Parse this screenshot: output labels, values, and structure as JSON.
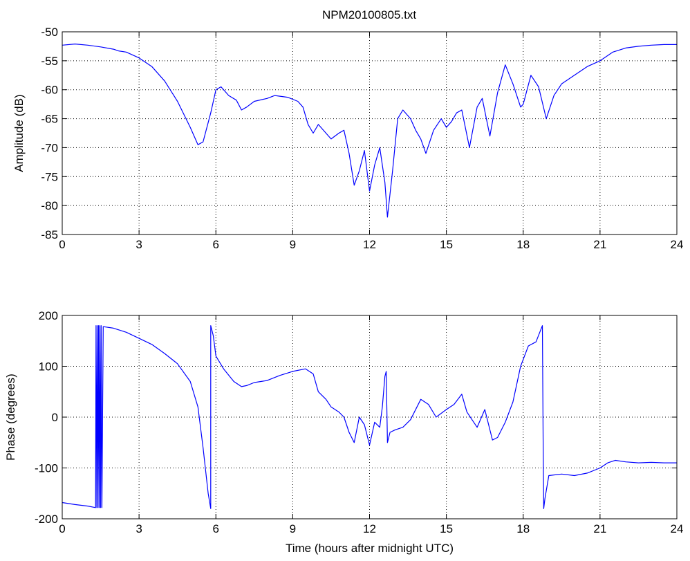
{
  "figure": {
    "title": "NPM20100805.txt",
    "line_color": "#0000ff"
  },
  "chart_data": [
    {
      "type": "line",
      "title": "NPM20100805.txt",
      "xlabel": "",
      "ylabel": "Amplitude (dB)",
      "xlim": [
        0,
        24
      ],
      "ylim": [
        -85,
        -50
      ],
      "xticks": [
        0,
        3,
        6,
        9,
        12,
        15,
        18,
        21,
        24
      ],
      "yticks": [
        -85,
        -80,
        -75,
        -70,
        -65,
        -60,
        -55,
        -50
      ],
      "grid": true,
      "series": [
        {
          "x": [
            0,
            0.5,
            1.0,
            1.5,
            2.0,
            2.2,
            2.5,
            3.0,
            3.5,
            4.0,
            4.5,
            5.0,
            5.3,
            5.5,
            5.8,
            6.0,
            6.2,
            6.5,
            6.8,
            7.0,
            7.2,
            7.5,
            8.0,
            8.3,
            8.8,
            9.2,
            9.4,
            9.6,
            9.8,
            10.0,
            10.3,
            10.5,
            10.8,
            11.0,
            11.2,
            11.4,
            11.6,
            11.8,
            12.0,
            12.2,
            12.4,
            12.6,
            12.7,
            12.9,
            13.1,
            13.3,
            13.6,
            13.8,
            14.0,
            14.2,
            14.5,
            14.8,
            15.0,
            15.2,
            15.4,
            15.6,
            15.9,
            16.2,
            16.4,
            16.7,
            17.0,
            17.3,
            17.6,
            17.9,
            18.0,
            18.3,
            18.6,
            18.9,
            19.2,
            19.5,
            20.0,
            20.5,
            21.0,
            21.5,
            22.0,
            22.5,
            23.0,
            23.5,
            24.0
          ],
          "y": [
            -52.3,
            -52.1,
            -52.3,
            -52.6,
            -53.0,
            -53.3,
            -53.5,
            -54.5,
            -56.0,
            -58.5,
            -62.0,
            -66.5,
            -69.5,
            -69.0,
            -64.0,
            -60.0,
            -59.5,
            -61.0,
            -61.8,
            -63.5,
            -63.0,
            -62.0,
            -61.5,
            -61.0,
            -61.3,
            -62.0,
            -63.0,
            -66.0,
            -67.5,
            -66.0,
            -67.5,
            -68.5,
            -67.5,
            -67.0,
            -71.0,
            -76.5,
            -74.0,
            -70.5,
            -77.5,
            -73.0,
            -70.0,
            -76.0,
            -82.0,
            -74.0,
            -65.0,
            -63.5,
            -65.0,
            -67.0,
            -68.5,
            -71.0,
            -67.0,
            -65.0,
            -66.5,
            -65.5,
            -64.0,
            -63.5,
            -70.0,
            -63.0,
            -61.5,
            -68.0,
            -60.5,
            -55.7,
            -59.0,
            -63.0,
            -62.5,
            -57.5,
            -59.5,
            -65.0,
            -61.0,
            -59.0,
            -57.5,
            -56.0,
            -55.0,
            -53.5,
            -52.8,
            -52.5,
            -52.3,
            -52.2,
            -52.2
          ]
        }
      ]
    },
    {
      "type": "line",
      "title": "",
      "xlabel": "Time (hours after midnight UTC)",
      "ylabel": "Phase (degrees)",
      "xlim": [
        0,
        24
      ],
      "ylim": [
        -200,
        200
      ],
      "xticks": [
        0,
        3,
        6,
        9,
        12,
        15,
        18,
        21,
        24
      ],
      "yticks": [
        -200,
        -100,
        0,
        100,
        200
      ],
      "grid": true,
      "series": [
        {
          "x": [
            0,
            0.5,
            1.0,
            1.3,
            1.32,
            1.35,
            1.37,
            1.4,
            1.42,
            1.45,
            1.47,
            1.5,
            1.52,
            1.55,
            1.6,
            2.0,
            2.5,
            3.0,
            3.5,
            4.0,
            4.5,
            5.0,
            5.3,
            5.5,
            5.7,
            5.8,
            5.8,
            5.9,
            6.0,
            6.3,
            6.7,
            7.0,
            7.2,
            7.5,
            8.0,
            8.5,
            9.0,
            9.5,
            9.8,
            10.0,
            10.3,
            10.5,
            10.8,
            11.0,
            11.2,
            11.4,
            11.6,
            11.8,
            12.0,
            12.2,
            12.4,
            12.5,
            12.6,
            12.65,
            12.7,
            12.8,
            13.0,
            13.3,
            13.6,
            14.0,
            14.3,
            14.6,
            15.0,
            15.3,
            15.6,
            15.8,
            16.0,
            16.2,
            16.5,
            16.8,
            17.0,
            17.3,
            17.6,
            17.9,
            18.2,
            18.5,
            18.75,
            18.78,
            18.8,
            18.85,
            19.0,
            19.5,
            20.0,
            20.5,
            21.0,
            21.3,
            21.6,
            22.0,
            22.5,
            23.0,
            23.5,
            24.0
          ],
          "y": [
            -168,
            -172,
            -175,
            -178,
            180,
            -178,
            180,
            -178,
            180,
            -178,
            180,
            -178,
            180,
            -178,
            178,
            175,
            167,
            155,
            143,
            125,
            105,
            70,
            20,
            -60,
            -150,
            -180,
            180,
            160,
            120,
            95,
            70,
            60,
            62,
            68,
            72,
            82,
            90,
            95,
            85,
            50,
            35,
            20,
            10,
            0,
            -30,
            -50,
            0,
            -15,
            -55,
            -10,
            -20,
            20,
            80,
            90,
            -50,
            -30,
            -25,
            -20,
            -5,
            35,
            25,
            0,
            15,
            25,
            45,
            10,
            -5,
            -20,
            15,
            -45,
            -40,
            -10,
            30,
            100,
            140,
            148,
            180,
            -50,
            -180,
            -160,
            -115,
            -112,
            -115,
            -110,
            -100,
            -90,
            -85,
            -88,
            -90,
            -89,
            -90,
            -90
          ]
        }
      ]
    }
  ]
}
